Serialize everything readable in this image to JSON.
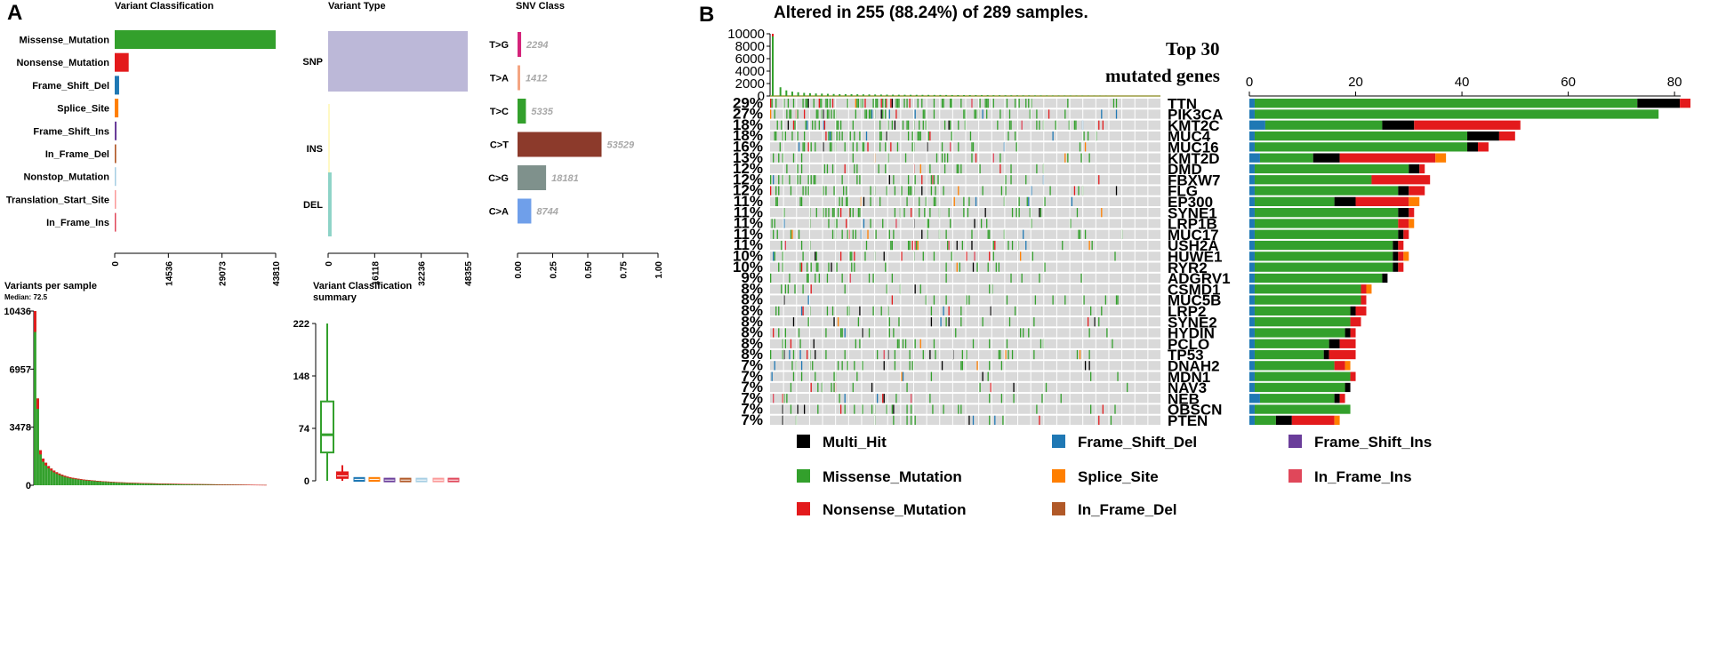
{
  "panel_labels": {
    "a": "A",
    "b": "B"
  },
  "colors": {
    "Missense_Mutation": "#33a02c",
    "Nonsense_Mutation": "#e31a1c",
    "Frame_Shift_Del": "#1f78b4",
    "Splice_Site": "#ff7f00",
    "Frame_Shift_Ins": "#6a3d9a",
    "In_Frame_Del": "#b15928",
    "Nonstop_Mutation": "#a6cee3",
    "Translation_Start_Site": "#fb9a99",
    "In_Frame_Ins": "#e0475a",
    "Multi_Hit": "#000000",
    "SNP": "#bcb8d8",
    "INS": "#fff9c4",
    "DEL": "#8dd3c7",
    "grid": "#d9d9d9"
  },
  "chart_data": [
    {
      "id": "variant-classification",
      "type": "bar",
      "orientation": "horizontal",
      "title": "Variant Classification",
      "categories": [
        "Missense_Mutation",
        "Nonsense_Mutation",
        "Frame_Shift_Del",
        "Splice_Site",
        "Frame_Shift_Ins",
        "In_Frame_Del",
        "Nonstop_Mutation",
        "Translation_Start_Site",
        "In_Frame_Ins"
      ],
      "values": [
        43810,
        3800,
        1200,
        1000,
        500,
        400,
        200,
        100,
        80
      ],
      "xlim": [
        0,
        43810
      ],
      "xticks": [
        "0",
        "14536",
        "29073",
        "43810"
      ]
    },
    {
      "id": "variant-type",
      "type": "bar",
      "orientation": "horizontal",
      "title": "Variant Type",
      "categories": [
        "SNP",
        "INS",
        "DEL"
      ],
      "values": [
        48355,
        300,
        1200
      ],
      "xlim": [
        0,
        48355
      ],
      "xticks": [
        "0",
        "16118",
        "32236",
        "48355"
      ]
    },
    {
      "id": "snv-class",
      "type": "bar",
      "orientation": "horizontal",
      "title": "SNV Class",
      "categories": [
        "T>G",
        "T>A",
        "T>C",
        "C>T",
        "C>G",
        "C>A"
      ],
      "values": [
        2294,
        1412,
        5335,
        53529,
        18181,
        8744
      ],
      "value_labels": [
        "2294",
        "1412",
        "5335",
        "53529",
        "18181",
        "8744"
      ],
      "colors": [
        "#d4237a",
        "#f4a582",
        "#33a02c",
        "#8c3a2b",
        "#7f918c",
        "#6f9fea"
      ],
      "xlim": [
        0,
        1
      ],
      "xticks": [
        "0.00",
        "0.25",
        "0.50",
        "0.75",
        "1.00"
      ]
    },
    {
      "id": "variants-per-sample",
      "type": "bar",
      "title": "Variants per sample",
      "subtitle": "Median: 72.5",
      "ylim": [
        0,
        10436
      ],
      "yticks": [
        "0",
        "3478",
        "6957",
        "10436"
      ],
      "values": [
        10436,
        5200,
        2100,
        1600,
        1350,
        1150,
        1000,
        880,
        780,
        700,
        630,
        570,
        520,
        480,
        445,
        415,
        390,
        365,
        345,
        325,
        310,
        295,
        280,
        265,
        252,
        240,
        230,
        220,
        210,
        200,
        190,
        182,
        175,
        168,
        162,
        156,
        150,
        145,
        140,
        135,
        130,
        126,
        122,
        118,
        114,
        110,
        106,
        103,
        100,
        97,
        94,
        91,
        88,
        85,
        82,
        80,
        78,
        76,
        74,
        72,
        70,
        68,
        66,
        64,
        62,
        60,
        58,
        56,
        54,
        52,
        50,
        48,
        46,
        44,
        42,
        40,
        38,
        36,
        34,
        32,
        30,
        28,
        26,
        24,
        22,
        20
      ]
    },
    {
      "id": "variant-classification-summary",
      "type": "box",
      "title": "Variant Classification",
      "title2": "summary",
      "ylim": [
        0,
        222
      ],
      "yticks": [
        "0",
        "74",
        "148",
        "222"
      ],
      "boxes": [
        {
          "name": "Missense_Mutation",
          "min": 0,
          "q1": 40,
          "median": 65,
          "q3": 112,
          "max": 222
        },
        {
          "name": "Nonsense_Mutation",
          "min": 0,
          "q1": 4,
          "median": 7,
          "q3": 12,
          "max": 22
        },
        {
          "name": "Frame_Shift_Del",
          "min": 0,
          "q1": 0,
          "median": 2,
          "q3": 4,
          "max": 5
        },
        {
          "name": "Splice_Site",
          "min": 0,
          "q1": 0,
          "median": 2,
          "q3": 4,
          "max": 5
        },
        {
          "name": "Frame_Shift_Ins",
          "min": 0,
          "q1": 0,
          "median": 1,
          "q3": 3,
          "max": 4
        },
        {
          "name": "In_Frame_Del",
          "min": 0,
          "q1": 0,
          "median": 1,
          "q3": 3,
          "max": 3
        },
        {
          "name": "Nonstop_Mutation",
          "min": 0,
          "q1": 0,
          "median": 1,
          "q3": 3,
          "max": 3
        },
        {
          "name": "Translation_Start_Site",
          "min": 0,
          "q1": 0,
          "median": 1,
          "q3": 3,
          "max": 3
        },
        {
          "name": "In_Frame_Ins",
          "min": 0,
          "q1": 0,
          "median": 1,
          "q3": 3,
          "max": 3
        }
      ]
    },
    {
      "id": "tmb-top",
      "type": "bar",
      "title": "Altered in 255 (88.24%) of 289 samples.",
      "ylim": [
        0,
        10000
      ],
      "yticks": [
        "0",
        "2000",
        "4000",
        "6000",
        "8000",
        "10000"
      ],
      "values": [
        10000,
        1400,
        900,
        700,
        600,
        500,
        450,
        400,
        380,
        350,
        320,
        300,
        290,
        280,
        270,
        260,
        250,
        240,
        230,
        220,
        210,
        200,
        195,
        190,
        185,
        180,
        175,
        170,
        165,
        160,
        155,
        150,
        145,
        140,
        135,
        130,
        125,
        120,
        115,
        110,
        105,
        100,
        95,
        90,
        85,
        80,
        75,
        70,
        65,
        60,
        55,
        50,
        45,
        40,
        35,
        30,
        25,
        20
      ]
    },
    {
      "id": "oncoplot",
      "type": "heatmap",
      "annotation": "Top 30 mutated genes",
      "genes": [
        "TTN",
        "PIK3CA",
        "KMT2C",
        "MUC4",
        "MUC16",
        "KMT2D",
        "DMD",
        "FBXW7",
        "FLG",
        "EP300",
        "SYNE1",
        "LRP1B",
        "MUC17",
        "USH2A",
        "HUWE1",
        "RYR2",
        "ADGRV1",
        "CSMD1",
        "MUC5B",
        "LRP2",
        "SYNE2",
        "HYDIN",
        "PCLO",
        "TP53",
        "DNAH2",
        "MDN1",
        "NAV3",
        "NEB",
        "OBSCN",
        "PTEN"
      ],
      "percentages": [
        "29%",
        "27%",
        "18%",
        "18%",
        "16%",
        "13%",
        "12%",
        "12%",
        "12%",
        "11%",
        "11%",
        "11%",
        "11%",
        "11%",
        "10%",
        "10%",
        "9%",
        "8%",
        "8%",
        "8%",
        "8%",
        "8%",
        "8%",
        "8%",
        "7%",
        "7%",
        "7%",
        "7%",
        "7%",
        "7%"
      ],
      "n_samples": 289
    },
    {
      "id": "gene-bars",
      "type": "bar",
      "orientation": "horizontal",
      "stacked": true,
      "xlim": [
        0,
        85
      ],
      "xticks": [
        "0",
        "20",
        "40",
        "60",
        "80"
      ],
      "series_names": [
        "Frame_Shift_Del",
        "Missense_Mutation",
        "Multi_Hit",
        "Nonsense_Mutation",
        "Splice_Site"
      ],
      "rows": [
        [
          1,
          72,
          8,
          2,
          0
        ],
        [
          1,
          76,
          0,
          0,
          0
        ],
        [
          3,
          22,
          6,
          20,
          0
        ],
        [
          1,
          40,
          6,
          3,
          0
        ],
        [
          1,
          40,
          2,
          2,
          0
        ],
        [
          2,
          10,
          5,
          18,
          2
        ],
        [
          1,
          29,
          2,
          1,
          0
        ],
        [
          1,
          22,
          0,
          11,
          0
        ],
        [
          1,
          27,
          2,
          3,
          0
        ],
        [
          1,
          15,
          4,
          10,
          2
        ],
        [
          1,
          27,
          2,
          1,
          0
        ],
        [
          1,
          27,
          0,
          2,
          1
        ],
        [
          1,
          27,
          1,
          1,
          0
        ],
        [
          1,
          26,
          1,
          1,
          0
        ],
        [
          1,
          26,
          1,
          1,
          1
        ],
        [
          1,
          26,
          1,
          1,
          0
        ],
        [
          1,
          24,
          1,
          0,
          0
        ],
        [
          1,
          20,
          0,
          1,
          1
        ],
        [
          1,
          20,
          0,
          1,
          0
        ],
        [
          1,
          18,
          1,
          2,
          0
        ],
        [
          1,
          18,
          0,
          2,
          0
        ],
        [
          1,
          17,
          1,
          1,
          0
        ],
        [
          1,
          14,
          2,
          3,
          0
        ],
        [
          1,
          13,
          1,
          5,
          0
        ],
        [
          1,
          15,
          0,
          2,
          1
        ],
        [
          1,
          18,
          0,
          1,
          0
        ],
        [
          1,
          17,
          1,
          0,
          0
        ],
        [
          2,
          14,
          1,
          1,
          0
        ],
        [
          1,
          18,
          0,
          0,
          0
        ],
        [
          1,
          4,
          3,
          8,
          1
        ]
      ]
    }
  ],
  "legend": [
    {
      "name": "Multi_Hit",
      "label": "Multi_Hit"
    },
    {
      "name": "Frame_Shift_Del",
      "label": "Frame_Shift_Del"
    },
    {
      "name": "Frame_Shift_Ins",
      "label": "Frame_Shift_Ins"
    },
    {
      "name": "Missense_Mutation",
      "label": "Missense_Mutation"
    },
    {
      "name": "Splice_Site",
      "label": "Splice_Site"
    },
    {
      "name": "In_Frame_Ins",
      "label": "In_Frame_Ins"
    },
    {
      "name": "Nonsense_Mutation",
      "label": "Nonsense_Mutation"
    },
    {
      "name": "In_Frame_Del",
      "label": "In_Frame_Del"
    }
  ]
}
